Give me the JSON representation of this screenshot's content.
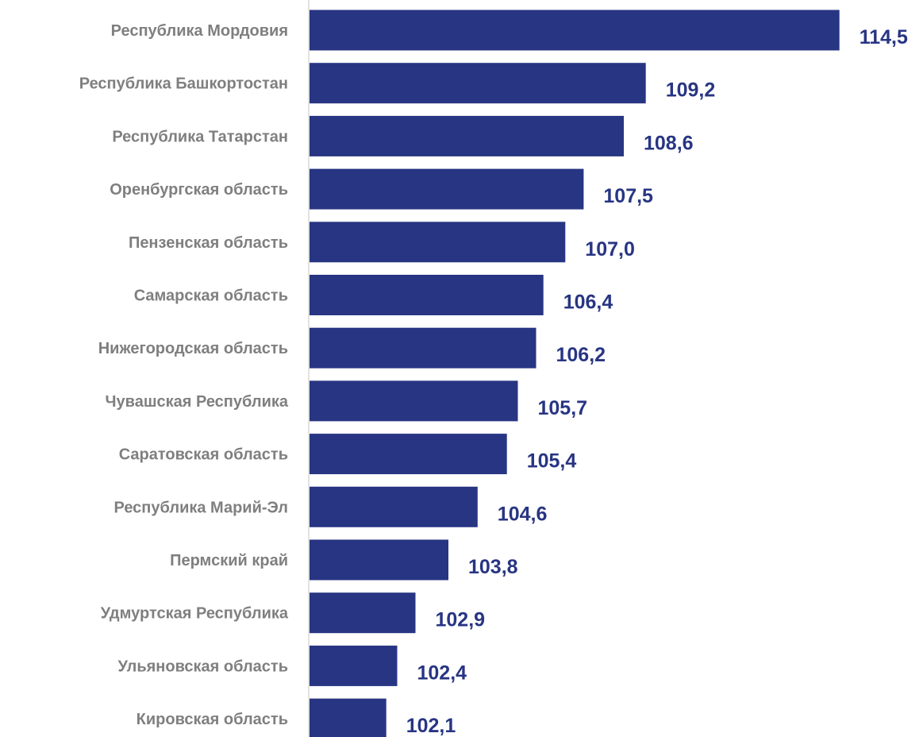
{
  "colors": {
    "bar": "#283583",
    "value_label": "#283583",
    "category_label": "#7f7f7f",
    "axis_line": "#d9d9d9"
  },
  "chart_data": {
    "type": "bar",
    "orientation": "horizontal",
    "categories": [
      "Республика Мордовия",
      "Республика Башкортостан",
      "Республика Татарстан",
      "Оренбургская область",
      "Пензенская область",
      "Самарская область",
      "Нижегородская область",
      "Чувашская Республика",
      "Саратовская область",
      "Республика Марий-Эл",
      "Пермский край",
      "Удмуртская Республика",
      "Ульяновская область",
      "Кировская область"
    ],
    "values": [
      114.5,
      109.2,
      108.6,
      107.5,
      107.0,
      106.4,
      106.2,
      105.7,
      105.4,
      104.6,
      103.8,
      102.9,
      102.4,
      102.1
    ],
    "value_labels": [
      "114,5",
      "109,2",
      "108,6",
      "107,5",
      "107,0",
      "106,4",
      "106,2",
      "105,7",
      "105,4",
      "104,6",
      "103,8",
      "102,9",
      "102,4",
      "102,1"
    ],
    "xlim": [
      100,
      115
    ],
    "grid": false,
    "legend": "none"
  }
}
